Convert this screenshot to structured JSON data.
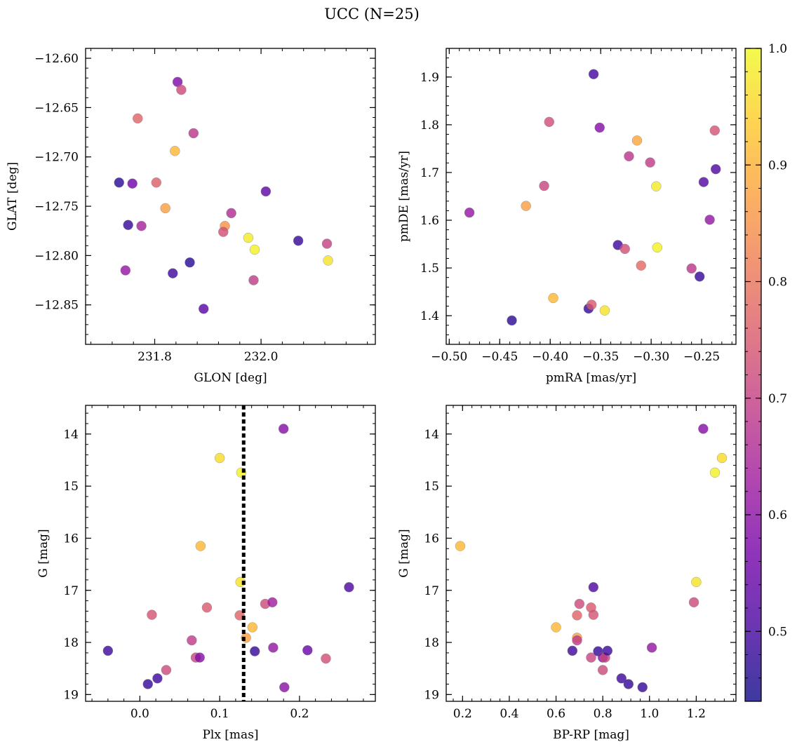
{
  "figure": {
    "title": "UCC (N=25)"
  },
  "colormap": {
    "name": "plasma",
    "range": [
      0.44,
      1.0
    ],
    "ticks": [
      0.5,
      0.6,
      0.7,
      0.8,
      0.9,
      1.0
    ],
    "tick_labels": [
      "0.5",
      "0.6",
      "0.7",
      "0.8",
      "0.9",
      "1.0"
    ],
    "stops": [
      "#0d0887",
      "#46039f",
      "#7201a8",
      "#9c179e",
      "#bd3786",
      "#d8576b",
      "#ed7953",
      "#fb9f3a",
      "#fdca26",
      "#f0f921"
    ],
    "marker_alpha": 0.8
  },
  "chart_data": [
    {
      "type": "scatter",
      "id": "glon-glat",
      "xlabel": "GLON [deg]",
      "ylabel": "GLAT [deg]",
      "xlim": [
        231.67,
        232.215
      ],
      "ylim": [
        -12.89,
        -12.59
      ],
      "x_ticks": [
        231.8,
        232.0
      ],
      "x_tick_labels": [
        "231.8",
        "232.0"
      ],
      "y_ticks": [
        -12.85,
        -12.8,
        -12.75,
        -12.7,
        -12.65,
        -12.6
      ],
      "y_tick_labels": [
        "−12.85",
        "−12.80",
        "−12.75",
        "−12.70",
        "−12.65",
        "−12.60"
      ],
      "points": [
        {
          "x": 231.733,
          "y": -12.726,
          "c": 0.47
        },
        {
          "x": 231.758,
          "y": -12.727,
          "c": 0.56
        },
        {
          "x": 231.75,
          "y": -12.769,
          "c": 0.48
        },
        {
          "x": 231.745,
          "y": -12.815,
          "c": 0.61
        },
        {
          "x": 231.775,
          "y": -12.77,
          "c": 0.64
        },
        {
          "x": 231.768,
          "y": -12.661,
          "c": 0.77
        },
        {
          "x": 231.803,
          "y": -12.726,
          "c": 0.76
        },
        {
          "x": 231.82,
          "y": -12.752,
          "c": 0.87
        },
        {
          "x": 231.838,
          "y": -12.694,
          "c": 0.91
        },
        {
          "x": 231.843,
          "y": -12.624,
          "c": 0.58
        },
        {
          "x": 231.85,
          "y": -12.632,
          "c": 0.72
        },
        {
          "x": 231.834,
          "y": -12.818,
          "c": 0.49
        },
        {
          "x": 231.866,
          "y": -12.807,
          "c": 0.47
        },
        {
          "x": 231.873,
          "y": -12.676,
          "c": 0.68
        },
        {
          "x": 231.892,
          "y": -12.854,
          "c": 0.52
        },
        {
          "x": 231.944,
          "y": -12.757,
          "c": 0.66
        },
        {
          "x": 231.932,
          "y": -12.77,
          "c": 0.85
        },
        {
          "x": 231.929,
          "y": -12.776,
          "c": 0.73
        },
        {
          "x": 231.976,
          "y": -12.782,
          "c": 0.98
        },
        {
          "x": 231.988,
          "y": -12.794,
          "c": 0.99
        },
        {
          "x": 231.986,
          "y": -12.825,
          "c": 0.69
        },
        {
          "x": 232.009,
          "y": -12.735,
          "c": 0.53
        },
        {
          "x": 232.07,
          "y": -12.785,
          "c": 0.48
        },
        {
          "x": 232.124,
          "y": -12.788,
          "c": 0.7
        },
        {
          "x": 232.126,
          "y": -12.805,
          "c": 0.97
        }
      ]
    },
    {
      "type": "scatter",
      "id": "pmra-pmde",
      "xlabel": "pmRA [mas/yr]",
      "ylabel": "pmDE [mas/yr]",
      "xlim": [
        -0.503,
        -0.216
      ],
      "ylim": [
        1.34,
        1.96
      ],
      "x_ticks": [
        -0.5,
        -0.45,
        -0.4,
        -0.35,
        -0.3,
        -0.25
      ],
      "x_tick_labels": [
        "−0.50",
        "−0.45",
        "−0.40",
        "−0.35",
        "−0.30",
        "−0.25"
      ],
      "y_ticks": [
        1.4,
        1.5,
        1.6,
        1.7,
        1.8,
        1.9
      ],
      "y_tick_labels": [
        "1.4",
        "1.5",
        "1.6",
        "1.7",
        "1.8",
        "1.9"
      ],
      "points": [
        {
          "x": -0.48,
          "y": 1.616,
          "c": 0.61
        },
        {
          "x": -0.438,
          "y": 1.39,
          "c": 0.47
        },
        {
          "x": -0.424,
          "y": 1.63,
          "c": 0.87
        },
        {
          "x": -0.401,
          "y": 1.806,
          "c": 0.73
        },
        {
          "x": -0.397,
          "y": 1.437,
          "c": 0.91
        },
        {
          "x": -0.406,
          "y": 1.672,
          "c": 0.71
        },
        {
          "x": -0.362,
          "y": 1.415,
          "c": 0.48
        },
        {
          "x": -0.359,
          "y": 1.423,
          "c": 0.75
        },
        {
          "x": -0.357,
          "y": 1.906,
          "c": 0.5
        },
        {
          "x": -0.351,
          "y": 1.794,
          "c": 0.59
        },
        {
          "x": -0.346,
          "y": 1.411,
          "c": 0.97
        },
        {
          "x": -0.333,
          "y": 1.548,
          "c": 0.49
        },
        {
          "x": -0.326,
          "y": 1.54,
          "c": 0.73
        },
        {
          "x": -0.322,
          "y": 1.734,
          "c": 0.68
        },
        {
          "x": -0.314,
          "y": 1.767,
          "c": 0.88
        },
        {
          "x": -0.31,
          "y": 1.505,
          "c": 0.78
        },
        {
          "x": -0.301,
          "y": 1.721,
          "c": 0.69
        },
        {
          "x": -0.295,
          "y": 1.671,
          "c": 0.98
        },
        {
          "x": -0.294,
          "y": 1.543,
          "c": 0.99
        },
        {
          "x": -0.26,
          "y": 1.499,
          "c": 0.68
        },
        {
          "x": -0.252,
          "y": 1.482,
          "c": 0.48
        },
        {
          "x": -0.248,
          "y": 1.68,
          "c": 0.52
        },
        {
          "x": -0.242,
          "y": 1.601,
          "c": 0.61
        },
        {
          "x": -0.237,
          "y": 1.788,
          "c": 0.74
        },
        {
          "x": -0.236,
          "y": 1.707,
          "c": 0.51
        }
      ]
    },
    {
      "type": "scatter",
      "id": "plx-g",
      "xlabel": "Plx [mas]",
      "ylabel": "G [mag]",
      "xlim": [
        -0.068,
        0.295
      ],
      "ylim": [
        13.45,
        19.13
      ],
      "y_inverted": true,
      "x_ticks": [
        0.0,
        0.1,
        0.2
      ],
      "x_tick_labels": [
        "0.0",
        "0.1",
        "0.2"
      ],
      "y_ticks": [
        14,
        15,
        16,
        17,
        18,
        19
      ],
      "y_tick_labels": [
        "14",
        "15",
        "16",
        "17",
        "18",
        "19"
      ],
      "vline": 0.13,
      "points": [
        {
          "x": -0.04,
          "y": 18.16,
          "c": 0.49
        },
        {
          "x": 0.01,
          "y": 18.8,
          "c": 0.48
        },
        {
          "x": 0.022,
          "y": 18.69,
          "c": 0.49
        },
        {
          "x": 0.015,
          "y": 17.47,
          "c": 0.74
        },
        {
          "x": 0.033,
          "y": 18.53,
          "c": 0.72
        },
        {
          "x": 0.065,
          "y": 17.96,
          "c": 0.69
        },
        {
          "x": 0.07,
          "y": 18.29,
          "c": 0.71
        },
        {
          "x": 0.075,
          "y": 18.29,
          "c": 0.59
        },
        {
          "x": 0.076,
          "y": 16.15,
          "c": 0.91
        },
        {
          "x": 0.084,
          "y": 17.33,
          "c": 0.75
        },
        {
          "x": 0.1,
          "y": 14.46,
          "c": 0.96
        },
        {
          "x": 0.125,
          "y": 17.48,
          "c": 0.77
        },
        {
          "x": 0.127,
          "y": 14.74,
          "c": 0.99
        },
        {
          "x": 0.126,
          "y": 16.84,
          "c": 0.97
        },
        {
          "x": 0.133,
          "y": 17.91,
          "c": 0.87
        },
        {
          "x": 0.141,
          "y": 17.71,
          "c": 0.91
        },
        {
          "x": 0.144,
          "y": 18.17,
          "c": 0.48
        },
        {
          "x": 0.157,
          "y": 17.26,
          "c": 0.72
        },
        {
          "x": 0.166,
          "y": 17.23,
          "c": 0.63
        },
        {
          "x": 0.167,
          "y": 18.1,
          "c": 0.61
        },
        {
          "x": 0.18,
          "y": 13.9,
          "c": 0.59
        },
        {
          "x": 0.181,
          "y": 18.86,
          "c": 0.6
        },
        {
          "x": 0.21,
          "y": 18.15,
          "c": 0.55
        },
        {
          "x": 0.233,
          "y": 18.31,
          "c": 0.73
        },
        {
          "x": 0.262,
          "y": 16.94,
          "c": 0.51
        }
      ]
    },
    {
      "type": "scatter",
      "id": "bprp-g",
      "xlabel": "BP-RP [mag]",
      "ylabel": "G [mag]",
      "xlim": [
        0.13,
        1.37
      ],
      "ylim": [
        13.45,
        19.13
      ],
      "y_inverted": true,
      "x_ticks": [
        0.2,
        0.4,
        0.6,
        0.8,
        1.0,
        1.2
      ],
      "x_tick_labels": [
        "0.2",
        "0.4",
        "0.6",
        "0.8",
        "1.0",
        "1.2"
      ],
      "y_ticks": [
        14,
        15,
        16,
        17,
        18,
        19
      ],
      "y_tick_labels": [
        "14",
        "15",
        "16",
        "17",
        "18",
        "19"
      ],
      "points": [
        {
          "x": 0.19,
          "y": 16.15,
          "c": 0.91
        },
        {
          "x": 0.6,
          "y": 17.71,
          "c": 0.91
        },
        {
          "x": 0.69,
          "y": 17.91,
          "c": 0.87
        },
        {
          "x": 0.69,
          "y": 17.96,
          "c": 0.69
        },
        {
          "x": 0.7,
          "y": 17.26,
          "c": 0.72
        },
        {
          "x": 0.69,
          "y": 17.48,
          "c": 0.77
        },
        {
          "x": 0.67,
          "y": 18.16,
          "c": 0.49
        },
        {
          "x": 0.75,
          "y": 17.33,
          "c": 0.75
        },
        {
          "x": 0.76,
          "y": 17.47,
          "c": 0.74
        },
        {
          "x": 0.75,
          "y": 18.29,
          "c": 0.71
        },
        {
          "x": 0.76,
          "y": 16.94,
          "c": 0.51
        },
        {
          "x": 0.78,
          "y": 18.17,
          "c": 0.48
        },
        {
          "x": 0.8,
          "y": 18.29,
          "c": 0.59
        },
        {
          "x": 0.81,
          "y": 18.29,
          "c": 0.71
        },
        {
          "x": 0.8,
          "y": 18.53,
          "c": 0.72
        },
        {
          "x": 0.82,
          "y": 18.16,
          "c": 0.49
        },
        {
          "x": 0.88,
          "y": 18.69,
          "c": 0.49
        },
        {
          "x": 0.91,
          "y": 18.8,
          "c": 0.48
        },
        {
          "x": 0.97,
          "y": 18.86,
          "c": 0.48
        },
        {
          "x": 1.01,
          "y": 18.1,
          "c": 0.61
        },
        {
          "x": 1.19,
          "y": 17.23,
          "c": 0.72
        },
        {
          "x": 1.2,
          "y": 16.84,
          "c": 0.97
        },
        {
          "x": 1.23,
          "y": 13.9,
          "c": 0.59
        },
        {
          "x": 1.28,
          "y": 14.74,
          "c": 0.99
        },
        {
          "x": 1.31,
          "y": 14.46,
          "c": 0.96
        }
      ]
    }
  ]
}
